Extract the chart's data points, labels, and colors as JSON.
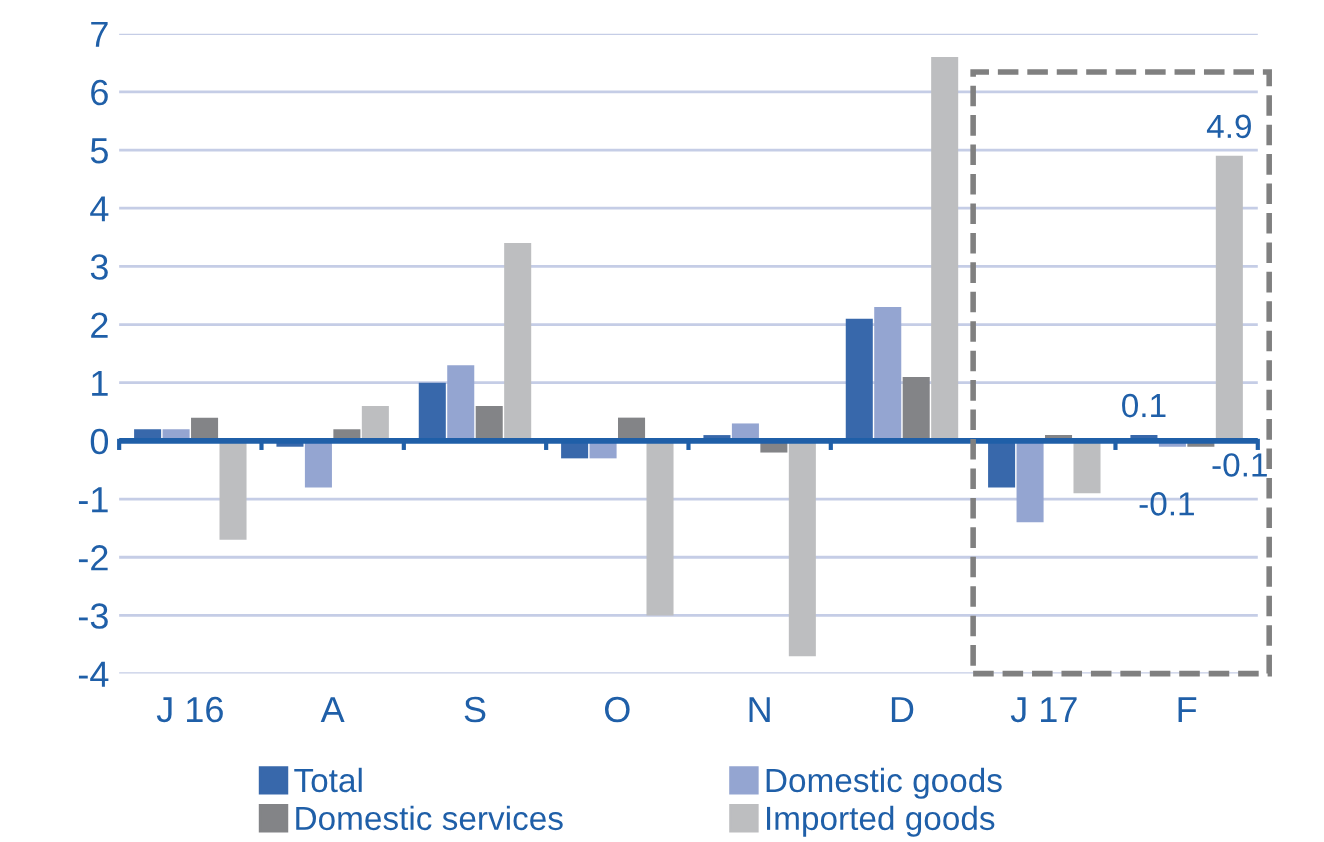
{
  "chart_data": {
    "type": "bar",
    "categories": [
      "J 16",
      "A",
      "S",
      "O",
      "N",
      "D",
      "J 17",
      "F"
    ],
    "series": [
      {
        "name": "Total",
        "color": "#3868ab",
        "values": [
          0.2,
          -0.1,
          1.0,
          -0.3,
          0.1,
          2.1,
          -0.8,
          0.1
        ],
        "value_labels": [
          null,
          null,
          null,
          null,
          null,
          null,
          null,
          "0.1"
        ]
      },
      {
        "name": "Domestic goods",
        "color": "#94a5d1",
        "values": [
          0.2,
          -0.8,
          1.3,
          -0.3,
          0.3,
          2.3,
          -1.4,
          -0.1
        ],
        "value_labels": [
          null,
          null,
          null,
          null,
          null,
          null,
          null,
          "-0.1"
        ]
      },
      {
        "name": "Domestic services",
        "color": "#838487",
        "values": [
          0.4,
          0.2,
          0.6,
          0.4,
          -0.2,
          1.1,
          0.1,
          -0.1
        ],
        "value_labels": [
          null,
          null,
          null,
          null,
          null,
          null,
          null,
          "-0.1"
        ]
      },
      {
        "name": "Imported goods",
        "color": "#bdbec0",
        "values": [
          -1.7,
          0.6,
          3.4,
          -3.0,
          -3.7,
          6.6,
          -0.9,
          4.9
        ],
        "value_labels": [
          null,
          null,
          null,
          null,
          null,
          null,
          null,
          "4.9"
        ]
      }
    ],
    "ylim": [
      -4,
      7
    ],
    "yticks": [
      -4,
      -3,
      -2,
      -1,
      0,
      1,
      2,
      3,
      4,
      5,
      6,
      7
    ],
    "grid": "y",
    "legend": "bottom",
    "ref_lines": [
      {
        "axis": "y",
        "value": 0,
        "color": "#1f5fa8"
      }
    ]
  }
}
